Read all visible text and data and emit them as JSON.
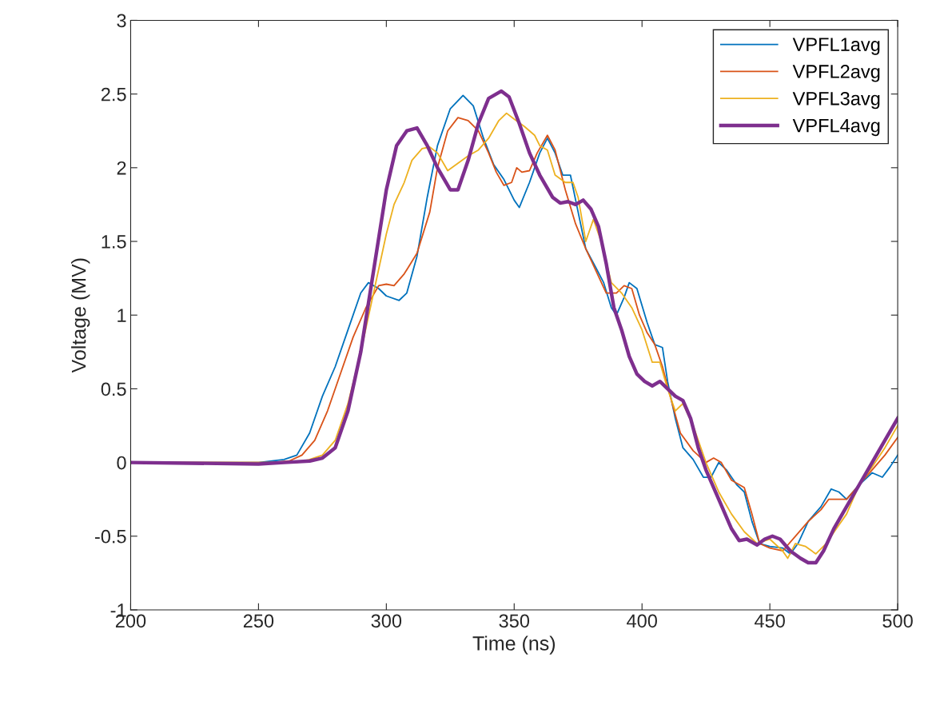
{
  "chart_data": {
    "type": "line",
    "xlabel": "Time (ns)",
    "ylabel": "Voltage (MV)",
    "xlim": [
      200,
      500
    ],
    "xticks": [
      200,
      250,
      300,
      350,
      400,
      450,
      500
    ],
    "ylim": [
      -1,
      3
    ],
    "yticks": [
      -1,
      -0.5,
      0,
      0.5,
      1,
      1.5,
      2,
      2.5,
      3
    ],
    "grid": false,
    "legend": "top right",
    "marker": "none",
    "line_style": "solid",
    "series": [
      {
        "name": "VPFL1avg",
        "color": "#0072bd",
        "x": [
          200,
          250,
          260,
          265,
          270,
          275,
          280,
          285,
          290,
          293,
          297,
          300,
          305,
          308,
          312,
          316,
          320,
          325,
          330,
          334,
          338,
          342,
          346,
          350,
          352,
          356,
          360,
          363,
          366,
          369,
          372,
          375,
          378,
          382,
          385,
          388,
          390,
          393,
          395,
          398,
          402,
          405,
          408,
          410,
          413,
          416,
          420,
          424,
          427,
          430,
          433,
          437,
          440,
          443,
          446,
          450,
          455,
          458,
          461,
          465,
          470,
          474,
          477,
          480,
          485,
          490,
          494,
          497,
          500
        ],
        "values": [
          0,
          0,
          0.02,
          0.05,
          0.2,
          0.45,
          0.65,
          0.9,
          1.15,
          1.22,
          1.18,
          1.13,
          1.1,
          1.15,
          1.4,
          1.8,
          2.15,
          2.4,
          2.49,
          2.42,
          2.2,
          2.02,
          1.92,
          1.78,
          1.73,
          1.9,
          2.1,
          2.2,
          2.1,
          1.95,
          1.95,
          1.7,
          1.45,
          1.32,
          1.22,
          1.05,
          1.0,
          1.12,
          1.22,
          1.18,
          0.95,
          0.8,
          0.78,
          0.55,
          0.3,
          0.1,
          0.02,
          -0.1,
          -0.1,
          0.0,
          -0.05,
          -0.15,
          -0.2,
          -0.4,
          -0.55,
          -0.57,
          -0.58,
          -0.62,
          -0.55,
          -0.4,
          -0.3,
          -0.18,
          -0.2,
          -0.25,
          -0.15,
          -0.07,
          -0.1,
          -0.03,
          0.05
        ]
      },
      {
        "name": "VPFL2avg",
        "color": "#d95319",
        "x": [
          200,
          255,
          262,
          267,
          272,
          277,
          282,
          287,
          292,
          297,
          300,
          303,
          307,
          312,
          317,
          320,
          324,
          328,
          332,
          336,
          340,
          343,
          346,
          349,
          351,
          353,
          356,
          359,
          363,
          366,
          370,
          374,
          378,
          382,
          386,
          390,
          393,
          396,
          399,
          402,
          405,
          408,
          411,
          415,
          420,
          425,
          428,
          431,
          435,
          440,
          443,
          446,
          450,
          455,
          460,
          465,
          470,
          473,
          477,
          480,
          485,
          490,
          495,
          500
        ],
        "values": [
          0,
          0,
          0.01,
          0.05,
          0.15,
          0.35,
          0.6,
          0.85,
          1.05,
          1.2,
          1.21,
          1.2,
          1.28,
          1.42,
          1.7,
          2.0,
          2.25,
          2.34,
          2.32,
          2.25,
          2.1,
          1.97,
          1.88,
          1.9,
          2.0,
          1.97,
          1.98,
          2.1,
          2.22,
          2.12,
          1.85,
          1.62,
          1.45,
          1.3,
          1.15,
          1.15,
          1.2,
          1.18,
          1.0,
          0.88,
          0.8,
          0.65,
          0.45,
          0.2,
          0.08,
          0.0,
          0.03,
          0.0,
          -0.12,
          -0.17,
          -0.35,
          -0.55,
          -0.58,
          -0.6,
          -0.5,
          -0.4,
          -0.32,
          -0.25,
          -0.25,
          -0.25,
          -0.15,
          -0.05,
          0.05,
          0.17
        ]
      },
      {
        "name": "VPFL3avg",
        "color": "#edb120",
        "x": [
          200,
          265,
          270,
          275,
          280,
          285,
          290,
          295,
          300,
          303,
          307,
          310,
          314,
          317,
          320,
          324,
          328,
          332,
          336,
          340,
          344,
          347,
          350,
          354,
          358,
          360,
          363,
          366,
          370,
          373,
          375,
          378,
          381,
          384,
          388,
          392,
          396,
          400,
          404,
          407,
          410,
          413,
          416,
          420,
          425,
          430,
          435,
          440,
          445,
          450,
          455,
          457,
          460,
          464,
          468,
          472,
          476,
          480,
          485,
          490,
          495,
          500
        ],
        "values": [
          0,
          0,
          0.02,
          0.05,
          0.15,
          0.4,
          0.75,
          1.15,
          1.55,
          1.75,
          1.9,
          2.05,
          2.13,
          2.14,
          2.1,
          1.98,
          2.03,
          2.08,
          2.12,
          2.2,
          2.32,
          2.37,
          2.33,
          2.28,
          2.22,
          2.15,
          2.12,
          1.95,
          1.9,
          1.9,
          1.8,
          1.5,
          1.65,
          1.5,
          1.22,
          1.15,
          1.05,
          0.9,
          0.68,
          0.68,
          0.5,
          0.35,
          0.4,
          0.25,
          0.0,
          -0.2,
          -0.35,
          -0.47,
          -0.55,
          -0.52,
          -0.6,
          -0.65,
          -0.55,
          -0.57,
          -0.62,
          -0.55,
          -0.45,
          -0.35,
          -0.15,
          -0.03,
          0.1,
          0.25
        ]
      },
      {
        "name": "VPFL4avg",
        "color": "#7e2f8e",
        "x": [
          200,
          250,
          260,
          270,
          275,
          280,
          285,
          290,
          295,
          300,
          304,
          308,
          312,
          316,
          320,
          325,
          328,
          332,
          336,
          340,
          345,
          348,
          352,
          356,
          360,
          365,
          368,
          371,
          374,
          377,
          380,
          383,
          386,
          389,
          392,
          395,
          398,
          401,
          404,
          407,
          410,
          413,
          416,
          419,
          422,
          425,
          430,
          435,
          438,
          441,
          445,
          448,
          451,
          454,
          458,
          462,
          465,
          468,
          471,
          475,
          480,
          485,
          490,
          495,
          500
        ],
        "values": [
          0,
          -0.01,
          0,
          0.01,
          0.03,
          0.1,
          0.35,
          0.75,
          1.3,
          1.85,
          2.15,
          2.25,
          2.27,
          2.15,
          2.0,
          1.85,
          1.85,
          2.05,
          2.3,
          2.47,
          2.52,
          2.48,
          2.3,
          2.1,
          1.95,
          1.8,
          1.76,
          1.77,
          1.75,
          1.78,
          1.72,
          1.6,
          1.35,
          1.05,
          0.9,
          0.72,
          0.6,
          0.55,
          0.52,
          0.55,
          0.5,
          0.45,
          0.42,
          0.3,
          0.1,
          -0.05,
          -0.25,
          -0.45,
          -0.53,
          -0.52,
          -0.56,
          -0.52,
          -0.5,
          -0.52,
          -0.6,
          -0.65,
          -0.68,
          -0.68,
          -0.6,
          -0.45,
          -0.3,
          -0.15,
          0.0,
          0.15,
          0.3
        ]
      }
    ]
  }
}
